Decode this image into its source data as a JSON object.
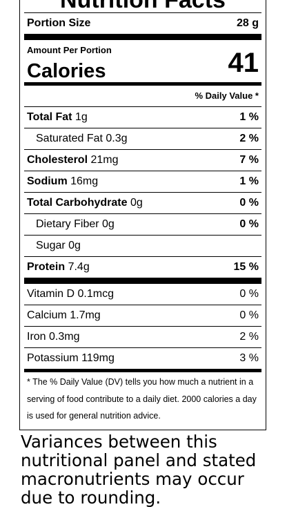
{
  "panel": {
    "title": "Nutrition Facts",
    "portion_label": "Portion Size",
    "portion_value": "28 g",
    "amount_per_portion": "Amount Per Portion",
    "calories_label": "Calories",
    "calories_value": "41",
    "daily_value_header": "% Daily Value *",
    "nutrients": [
      {
        "label": "Total Fat",
        "amount": "1g",
        "dv": "1 %"
      },
      {
        "label": "Saturated Fat",
        "amount": "0.3g",
        "dv": "2 %"
      },
      {
        "label": "Cholesterol",
        "amount": "21mg",
        "dv": "7 %"
      },
      {
        "label": "Sodium",
        "amount": "16mg",
        "dv": "1 %"
      },
      {
        "label": "Total Carbohydrate",
        "amount": "0g",
        "dv": "0 %"
      },
      {
        "label": "Dietary Fiber",
        "amount": "0g",
        "dv": "0 %"
      },
      {
        "label": "Sugar",
        "amount": "0g",
        "dv": ""
      },
      {
        "label": "Protein",
        "amount": "7.4g",
        "dv": "15 %"
      }
    ],
    "vitamins": [
      {
        "label": "Vitamin D 0.1mcg",
        "dv": "0 %"
      },
      {
        "label": "Calcium 1.7mg",
        "dv": "0 %"
      },
      {
        "label": "Iron 0.3mg",
        "dv": "2 %"
      },
      {
        "label": "Potassium 119mg",
        "dv": "3 %"
      }
    ],
    "footnote": "* The % Daily Value (DV) tells you how much a nutrient in a serving of food contribute to a daily diet. 2000 calories a day is used for general nutrition advice."
  },
  "note": "Variances between this nutritional panel and stated macronutrients may occur due to rounding."
}
